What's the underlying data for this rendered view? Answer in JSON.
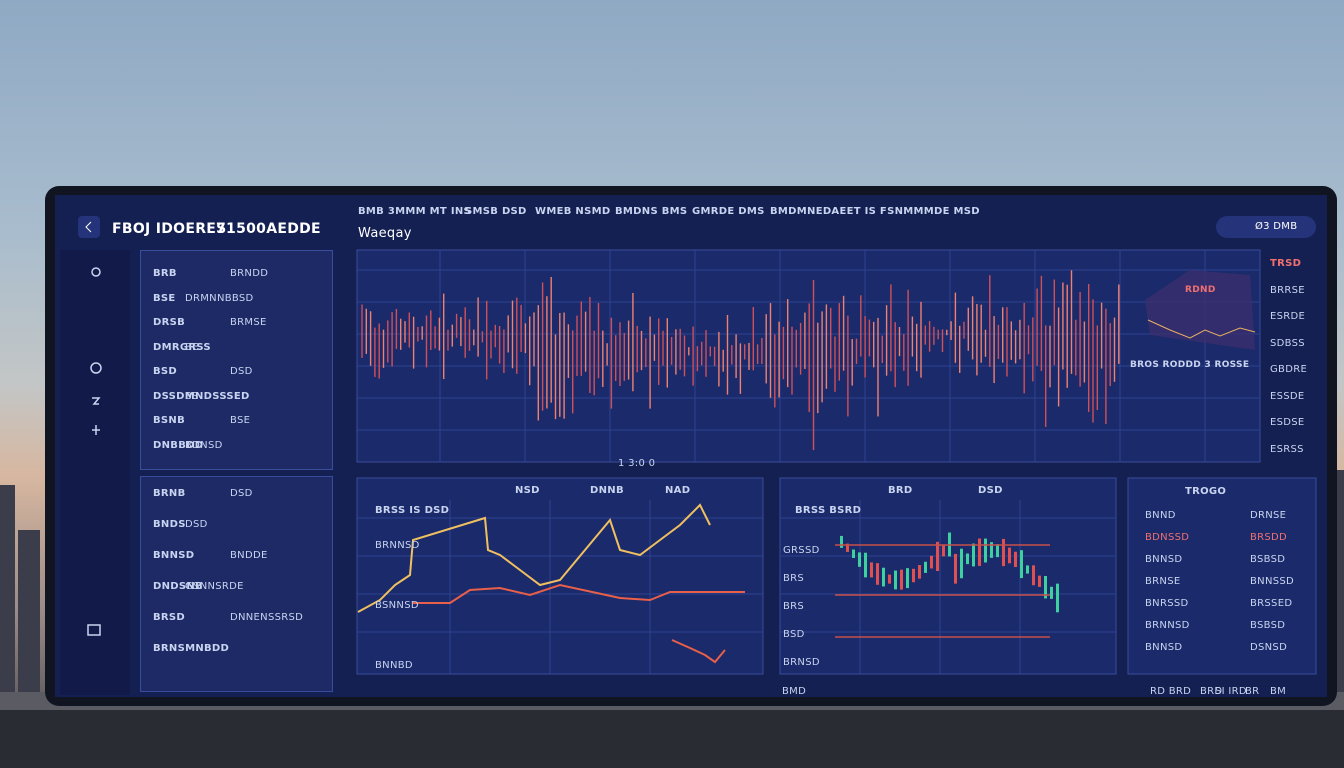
{
  "header": {
    "title": "FBOJ IDOERES",
    "account": "71500AEDDE",
    "button": "Ø3 DMB"
  },
  "nav": [
    "BMB 3MMM MT INS",
    "SMSB DSD",
    "WMEB NSMD",
    "BMDNS BMS",
    "GMRDE DMS",
    "BMDMNEDAEET IS FSNMMMDE MSD"
  ],
  "main_chart": {
    "title": "Waeqay",
    "x_label": "1 3:0 0",
    "annotation": "BROS RODDD 3 ROSSE",
    "legend": "RDND",
    "side_labels": [
      "TRSD",
      "BRRSE",
      "ESRDE",
      "SDBSS",
      "GBDRE",
      "ESSDE",
      "ESDSE",
      "ESRSS"
    ]
  },
  "left_panel": {
    "rows": [
      [
        "BRB",
        "BRNDD"
      ],
      [
        "BSE",
        "DRMNNBBSD"
      ],
      [
        "DRSB",
        "BRMSE"
      ],
      [
        "DMRGRSS",
        "BE"
      ],
      [
        "BSD",
        "DSD"
      ],
      [
        "DSSDMNDSSSED",
        "BS"
      ],
      [
        "BSNB",
        "BSE"
      ],
      [
        "DNBBDD",
        "BDNSD"
      ],
      [
        "BRNB",
        "DSD"
      ],
      [
        "BNDS",
        "DSD"
      ],
      [
        "BNNSD",
        "BNDDE"
      ],
      [
        "DNDSNB",
        "GSNNSRDE"
      ],
      [
        "BRSD",
        "DNNENSSRSD"
      ],
      [
        "BRNSMNBDD",
        ""
      ]
    ]
  },
  "bottom_left": {
    "tabs": [
      "NSD",
      "DNNB",
      "NAD"
    ],
    "title": "BRSS IS DSD",
    "labels": [
      "BRNNSD",
      "BSNNSD",
      "BNNBD"
    ]
  },
  "bottom_mid": {
    "tabs": [
      "BRD",
      "DSD"
    ],
    "title": "BRSS BSRD",
    "labels": [
      "GRSSD",
      "BRS",
      "BRS",
      "BSD",
      "BRNSD"
    ]
  },
  "right_panel": {
    "title": "TROGO",
    "rows": [
      [
        "BNND",
        "DRNSE"
      ],
      [
        "BDNSSD",
        "BRSDD"
      ],
      [
        "BNNSD",
        "BSBSD"
      ],
      [
        "BRNSE",
        "BNNSSD"
      ],
      [
        "BNRSSD",
        "BRSSED"
      ],
      [
        "BRNNSD",
        "BSBSD"
      ],
      [
        "BNNSD",
        "DSNSD"
      ]
    ]
  },
  "footer": [
    "RD BRD",
    "BRD",
    "SI IRD",
    "BR",
    "BM",
    "BMD"
  ]
}
